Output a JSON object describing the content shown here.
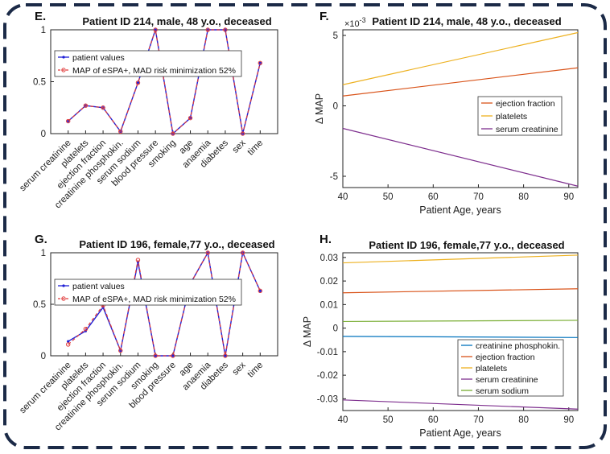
{
  "chart_data": [
    {
      "panel": "E.",
      "type": "line",
      "title": "Patient ID 214, male, 48 y.o., deceased",
      "xlabel": "",
      "ylabel": "",
      "ylim": [
        0,
        1
      ],
      "yticks": [
        "0",
        "0.5",
        "1"
      ],
      "categories": [
        "serum creatinine",
        "platelets",
        "ejection fraction",
        "creatinine phosphokin.",
        "serum sodium",
        "blood pressure",
        "smoking",
        "age",
        "anaemia",
        "diabetes",
        "sex",
        "time"
      ],
      "series": [
        {
          "name": "patient values",
          "color": "#1f1fd6",
          "values": [
            0.12,
            0.27,
            0.25,
            0.02,
            0.49,
            1.0,
            0.0,
            0.15,
            1.0,
            1.0,
            0.0,
            0.68
          ]
        },
        {
          "name": "MAP of eSPA+, MAD risk minimization 52%",
          "color": "#e03a3a",
          "values": [
            0.12,
            0.27,
            0.25,
            0.02,
            0.49,
            1.0,
            0.0,
            0.15,
            1.0,
            1.0,
            0.0,
            0.68
          ]
        }
      ],
      "legend": "left"
    },
    {
      "panel": "F.",
      "type": "line",
      "title": "Patient ID 214, male, 48 y.o., deceased",
      "exponent": "×10",
      "exponent_power": "-3",
      "xlabel": "Patient Age, years",
      "ylabel": "Δ MAP",
      "xlim": [
        40,
        92
      ],
      "ylim": [
        -5.8,
        5.4
      ],
      "xticks": [
        40,
        50,
        60,
        70,
        80,
        90
      ],
      "yticks": [
        -5,
        0,
        5
      ],
      "series": [
        {
          "name": "ejection fraction",
          "color": "#d95319",
          "x": [
            40,
            92
          ],
          "y": [
            0.7,
            2.7
          ]
        },
        {
          "name": "platelets",
          "color": "#edb120",
          "x": [
            40,
            92
          ],
          "y": [
            1.5,
            5.2
          ]
        },
        {
          "name": "serum creatinine",
          "color": "#7e2f8e",
          "x": [
            40,
            92
          ],
          "y": [
            -1.6,
            -5.7
          ]
        }
      ],
      "legend": "right"
    },
    {
      "panel": "G.",
      "type": "line",
      "title": "Patient ID 196, female,77 y.o., deceased",
      "xlabel": "",
      "ylabel": "",
      "ylim": [
        0,
        1
      ],
      "yticks": [
        "0",
        "0.5",
        "1"
      ],
      "categories": [
        "serum creatinine",
        "platelets",
        "ejection fraction",
        "creatinine phosphokin.",
        "serum sodium",
        "smoking",
        "blood pressure",
        "age",
        "anaemia",
        "diabetes",
        "sex",
        "time"
      ],
      "series": [
        {
          "name": "patient values",
          "color": "#1f1fd6",
          "values": [
            0.14,
            0.24,
            0.47,
            0.05,
            0.91,
            0.0,
            0.0,
            0.7,
            1.0,
            0.0,
            1.0,
            0.63
          ]
        },
        {
          "name": "MAP of eSPA+, MAD risk minimization 52%",
          "color": "#e03a3a",
          "values": [
            0.11,
            0.26,
            0.49,
            0.05,
            0.93,
            0.0,
            0.0,
            0.7,
            1.0,
            0.0,
            1.0,
            0.63
          ]
        }
      ],
      "legend": "left"
    },
    {
      "panel": "H.",
      "type": "line",
      "title": "Patient ID 196, female,77 y.o., deceased",
      "xlabel": "Patient Age, years",
      "ylabel": "Δ MAP",
      "xlim": [
        40,
        92
      ],
      "ylim": [
        -0.035,
        0.032
      ],
      "xticks": [
        40,
        50,
        60,
        70,
        80,
        90
      ],
      "yticks": [
        "-0.03",
        "-0.02",
        "-0.01",
        "0",
        "0.01",
        "0.02",
        "0.03"
      ],
      "series": [
        {
          "name": "creatinine phosphokin.",
          "color": "#0072bd",
          "x": [
            40,
            92
          ],
          "y": [
            -0.0035,
            -0.004
          ]
        },
        {
          "name": "ejection fraction",
          "color": "#d95319",
          "x": [
            40,
            92
          ],
          "y": [
            0.015,
            0.0167
          ]
        },
        {
          "name": "platelets",
          "color": "#edb120",
          "x": [
            40,
            92
          ],
          "y": [
            0.0277,
            0.031
          ]
        },
        {
          "name": "serum creatinine",
          "color": "#7e2f8e",
          "x": [
            40,
            92
          ],
          "y": [
            -0.0305,
            -0.0344
          ]
        },
        {
          "name": "serum sodium",
          "color": "#77ac30",
          "x": [
            40,
            92
          ],
          "y": [
            0.0028,
            0.0033
          ]
        }
      ],
      "legend": "bottom-right"
    }
  ]
}
